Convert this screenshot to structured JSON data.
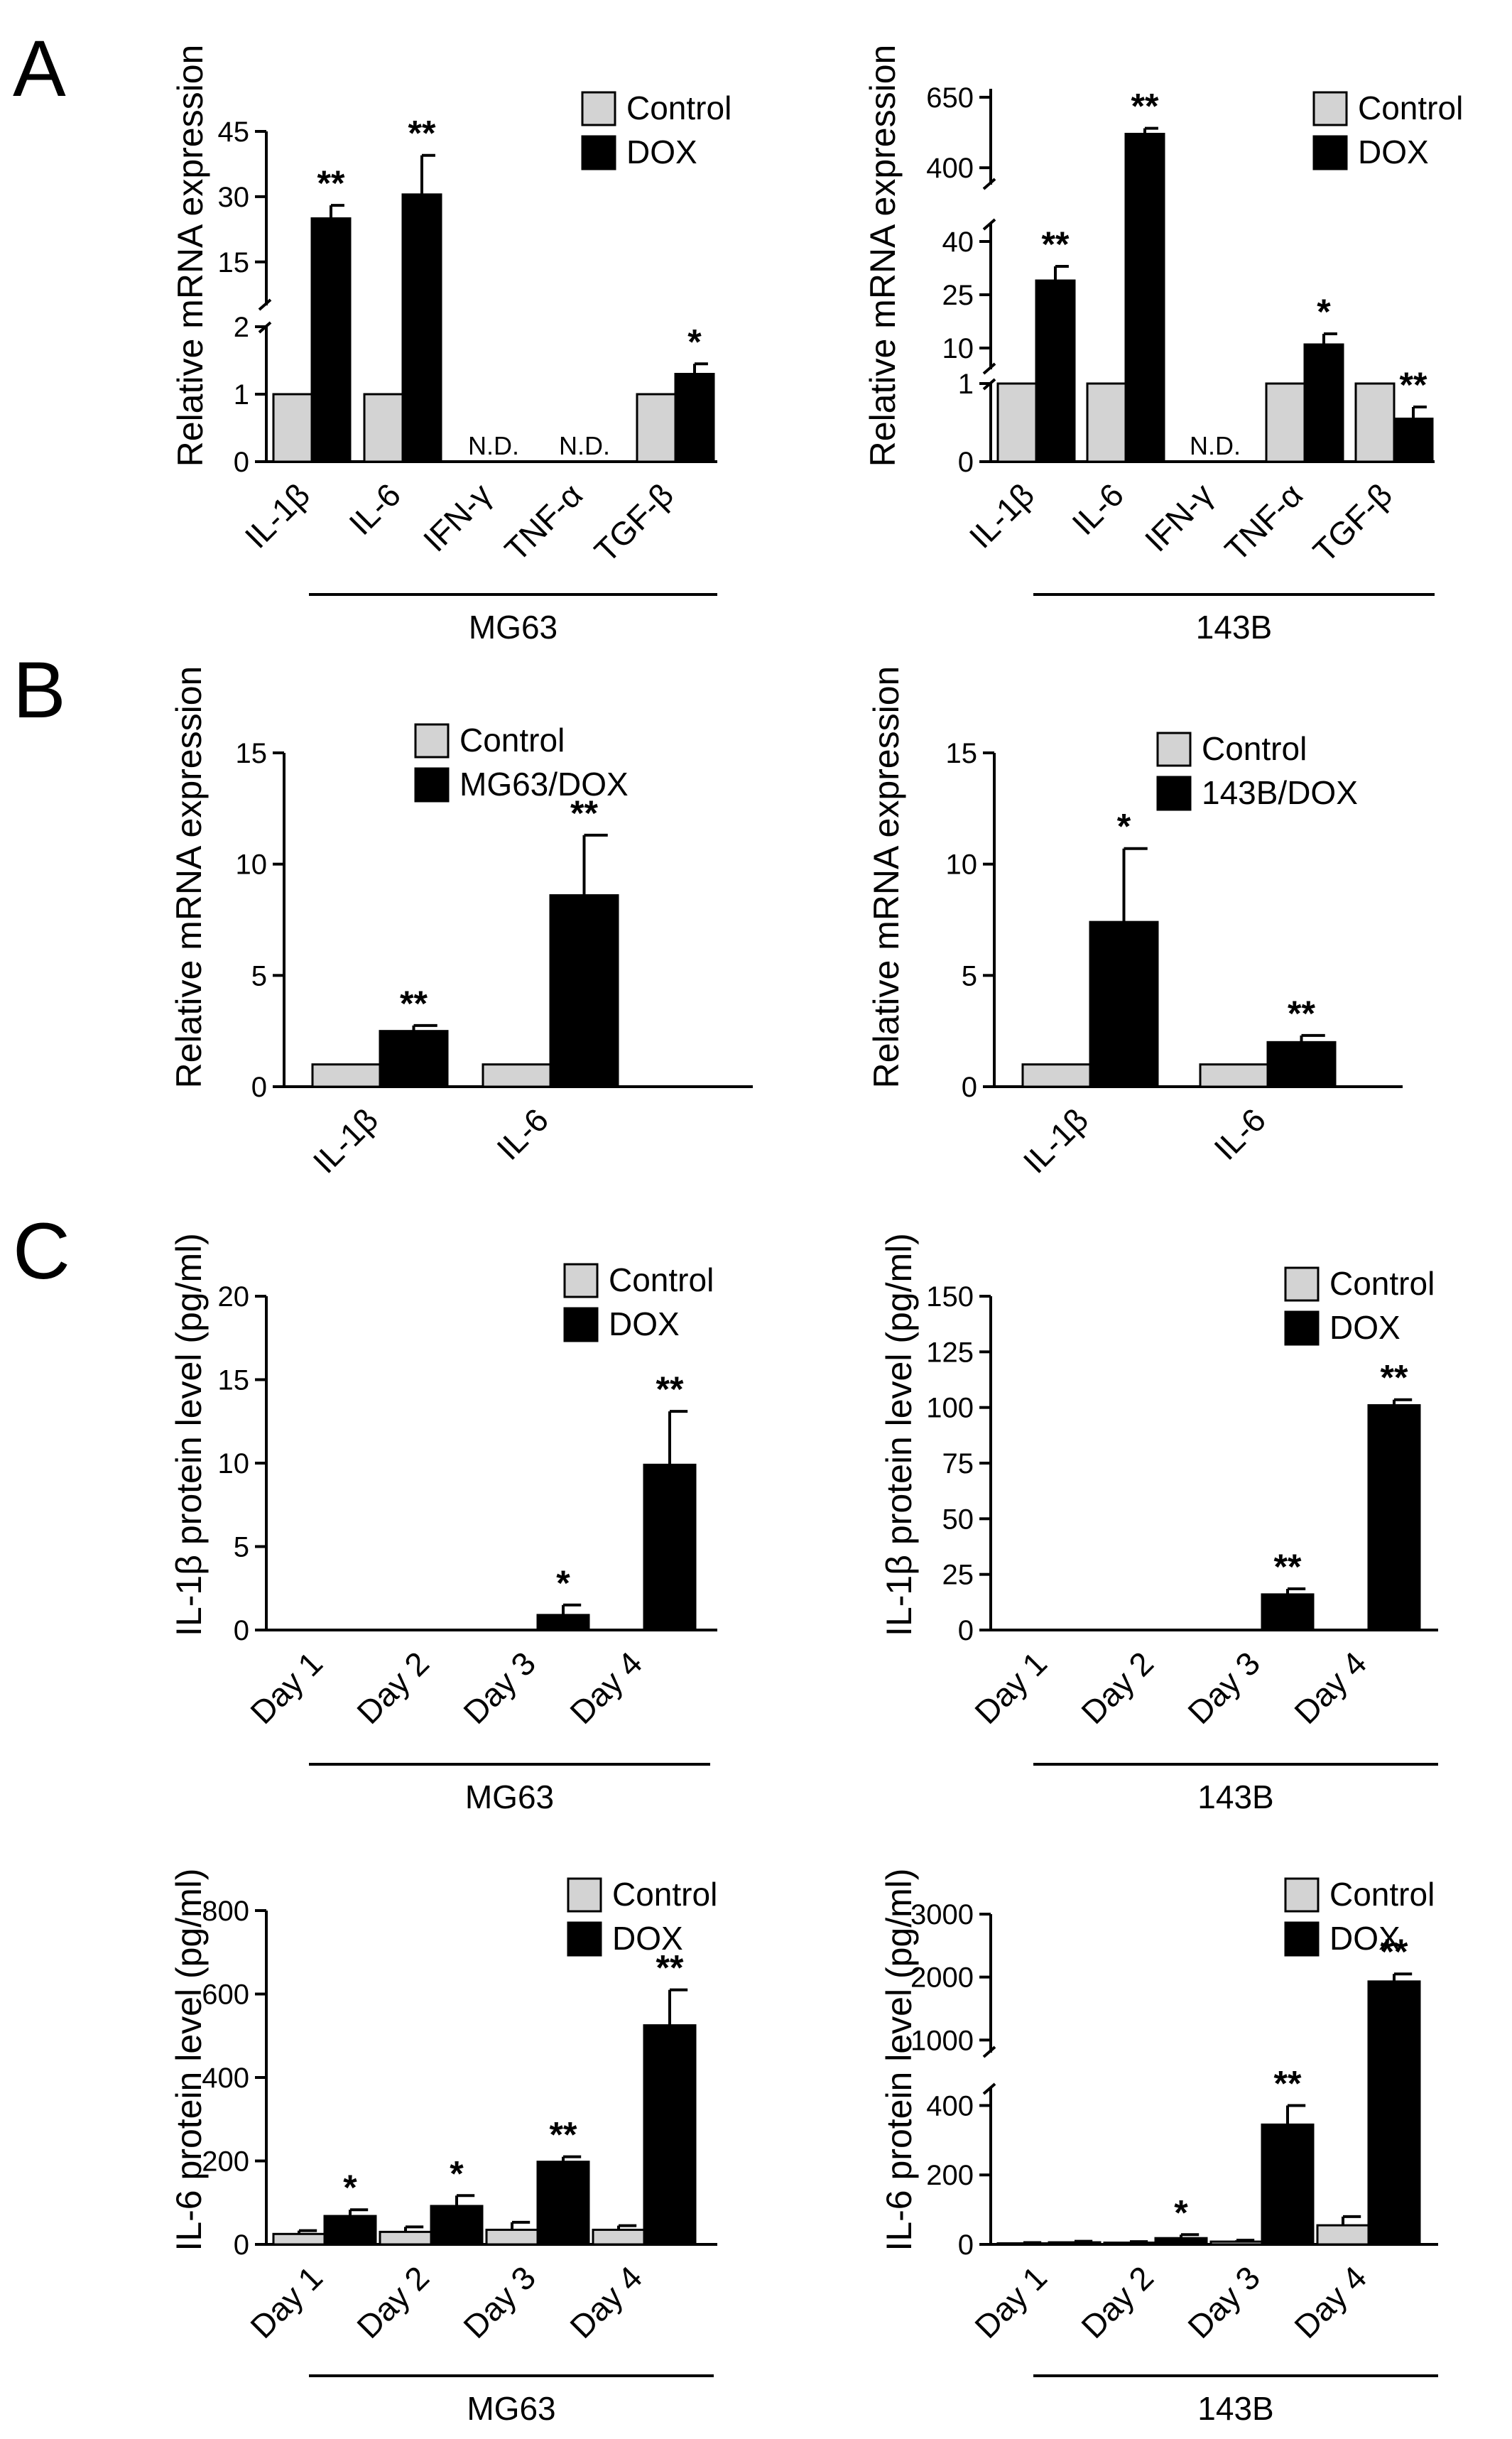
{
  "colors": {
    "control": "#d3d3d3",
    "dox": "#000000",
    "axis": "#000000",
    "background": "#ffffff"
  },
  "panels": [
    {
      "letter": "A"
    },
    {
      "letter": "B"
    },
    {
      "letter": "C"
    }
  ],
  "chart_data": [
    {
      "id": "A-MG63",
      "panel": "A",
      "type": "bar",
      "ylabel": "Relative mRNA expression",
      "cell_line": "MG63",
      "categories": [
        "IL-1β",
        "IL-6",
        "IFN-γ",
        "TNF-α",
        "TGF-β"
      ],
      "series": [
        {
          "name": "Control",
          "values": [
            1,
            1,
            null,
            null,
            1
          ],
          "errors": [
            0,
            0,
            0,
            0,
            0
          ]
        },
        {
          "name": "DOX",
          "values": [
            25,
            30.5,
            null,
            null,
            1.3
          ],
          "errors": [
            3,
            9,
            0,
            0,
            0.15
          ]
        }
      ],
      "significance": [
        "**",
        "**",
        "",
        "",
        "*"
      ],
      "not_detected": [
        false,
        false,
        true,
        true,
        false
      ],
      "not_detected_label": "N.D.",
      "y_axis_broken": true,
      "y_segments": [
        {
          "range": [
            0,
            2
          ],
          "ticks": [
            0,
            1,
            2
          ]
        },
        {
          "range": [
            5,
            45
          ],
          "ticks": [
            15,
            30,
            45
          ]
        }
      ],
      "legend": [
        "Control",
        "DOX"
      ]
    },
    {
      "id": "A-143B",
      "panel": "A",
      "type": "bar",
      "ylabel": "Relative mRNA expression",
      "cell_line": "143B",
      "categories": [
        "IL-1β",
        "IL-6",
        "IFN-γ",
        "TNF-α",
        "TGF-β"
      ],
      "series": [
        {
          "name": "Control",
          "values": [
            1,
            1,
            null,
            1,
            1
          ],
          "errors": [
            0,
            0,
            0,
            0,
            0
          ]
        },
        {
          "name": "DOX",
          "values": [
            29,
            520,
            null,
            11,
            0.55
          ],
          "errors": [
            4,
            20,
            0,
            3,
            0.15
          ]
        }
      ],
      "significance": [
        "**",
        "**",
        "",
        "*",
        "**"
      ],
      "not_detected": [
        false,
        false,
        true,
        false,
        false
      ],
      "not_detected_label": "N.D.",
      "y_axis_broken": true,
      "y_segments": [
        {
          "range": [
            0,
            1
          ],
          "ticks": [
            0,
            1
          ]
        },
        {
          "range": [
            4,
            45
          ],
          "ticks": [
            10,
            25,
            40
          ]
        },
        {
          "range": [
            340,
            680
          ],
          "ticks": [
            400,
            650
          ]
        }
      ],
      "legend": [
        "Control",
        "DOX"
      ]
    },
    {
      "id": "B-MG63",
      "panel": "B",
      "type": "bar",
      "ylabel": "Relative mRNA expression",
      "categories": [
        "IL-1β",
        "IL-6"
      ],
      "series": [
        {
          "name": "Control",
          "values": [
            1,
            1
          ],
          "errors": [
            0,
            0
          ]
        },
        {
          "name": "MG63/DOX",
          "values": [
            2.5,
            8.6
          ],
          "errors": [
            0.25,
            2.7
          ]
        }
      ],
      "significance": [
        "**",
        "**"
      ],
      "ylim": [
        0,
        15
      ],
      "yticks": [
        0,
        5,
        10,
        15
      ],
      "legend": [
        "Control",
        "MG63/DOX"
      ]
    },
    {
      "id": "B-143B",
      "panel": "B",
      "type": "bar",
      "ylabel": "Relative mRNA expression",
      "categories": [
        "IL-1β",
        "IL-6"
      ],
      "series": [
        {
          "name": "Control",
          "values": [
            1,
            1
          ],
          "errors": [
            0,
            0
          ]
        },
        {
          "name": "143B/DOX",
          "values": [
            7.4,
            2.0
          ],
          "errors": [
            3.3,
            0.3
          ]
        }
      ],
      "significance": [
        "*",
        "**"
      ],
      "ylim": [
        0,
        15
      ],
      "yticks": [
        0,
        5,
        10,
        15
      ],
      "legend": [
        "Control",
        "143B/DOX"
      ]
    },
    {
      "id": "C-IL1b-MG63",
      "panel": "C",
      "type": "bar",
      "ylabel": "IL-1β protein level (pg/ml)",
      "cell_line": "MG63",
      "categories": [
        "Day 1",
        "Day 2",
        "Day 3",
        "Day 4"
      ],
      "series": [
        {
          "name": "Control",
          "values": [
            0,
            0,
            0,
            0
          ],
          "errors": [
            0,
            0,
            0,
            0
          ]
        },
        {
          "name": "DOX",
          "values": [
            0,
            0,
            0.9,
            9.9
          ],
          "errors": [
            0,
            0,
            0.6,
            3.2
          ]
        }
      ],
      "significance": [
        "",
        "",
        "*",
        "**"
      ],
      "ylim": [
        0,
        20
      ],
      "yticks": [
        0,
        5,
        10,
        15,
        20
      ],
      "legend": [
        "Control",
        "DOX"
      ]
    },
    {
      "id": "C-IL1b-143B",
      "panel": "C",
      "type": "bar",
      "ylabel": "IL-1β protein level (pg/ml)",
      "cell_line": "143B",
      "categories": [
        "Day 1",
        "Day 2",
        "Day 3",
        "Day 4"
      ],
      "series": [
        {
          "name": "Control",
          "values": [
            0,
            0,
            0,
            0
          ],
          "errors": [
            0,
            0,
            0,
            0
          ]
        },
        {
          "name": "DOX",
          "values": [
            0,
            0,
            16,
            101
          ],
          "errors": [
            0,
            0,
            2.5,
            2.5
          ]
        }
      ],
      "significance": [
        "",
        "",
        "**",
        "**"
      ],
      "ylim": [
        0,
        150
      ],
      "yticks": [
        0,
        25,
        50,
        75,
        100,
        125,
        150
      ],
      "legend": [
        "Control",
        "DOX"
      ]
    },
    {
      "id": "C-IL6-MG63",
      "panel": "C",
      "type": "bar",
      "ylabel": "IL-6 protein level (pg/ml)",
      "cell_line": "MG63",
      "categories": [
        "Day 1",
        "Day 2",
        "Day 3",
        "Day 4"
      ],
      "series": [
        {
          "name": "Control",
          "values": [
            25,
            30,
            35,
            35
          ],
          "errors": [
            8,
            12,
            18,
            10
          ]
        },
        {
          "name": "DOX",
          "values": [
            68,
            92,
            198,
            525
          ],
          "errors": [
            15,
            25,
            12,
            85
          ]
        }
      ],
      "significance": [
        "*",
        "*",
        "**",
        "**"
      ],
      "ylim": [
        0,
        800
      ],
      "yticks": [
        0,
        200,
        400,
        600,
        800
      ],
      "legend": [
        "Control",
        "DOX"
      ]
    },
    {
      "id": "C-IL6-143B",
      "panel": "C",
      "type": "bar",
      "ylabel": "IL-6 protein level (pg/ml)",
      "cell_line": "143B",
      "categories": [
        "Day 1",
        "Day 2",
        "Day 3",
        "Day 4"
      ],
      "series": [
        {
          "name": "Control",
          "values": [
            3,
            5,
            8,
            55
          ],
          "errors": [
            2,
            3,
            4,
            25
          ]
        },
        {
          "name": "DOX",
          "values": [
            6,
            18,
            345,
            1930
          ],
          "errors": [
            3,
            10,
            55,
            120
          ]
        }
      ],
      "significance": [
        "",
        "*",
        "**",
        "**"
      ],
      "y_axis_broken": true,
      "y_segments": [
        {
          "range": [
            0,
            450
          ],
          "ticks": [
            0,
            200,
            400
          ]
        },
        {
          "range": [
            800,
            3000
          ],
          "ticks": [
            1000,
            2000,
            3000
          ]
        }
      ],
      "legend": [
        "Control",
        "DOX"
      ]
    }
  ]
}
